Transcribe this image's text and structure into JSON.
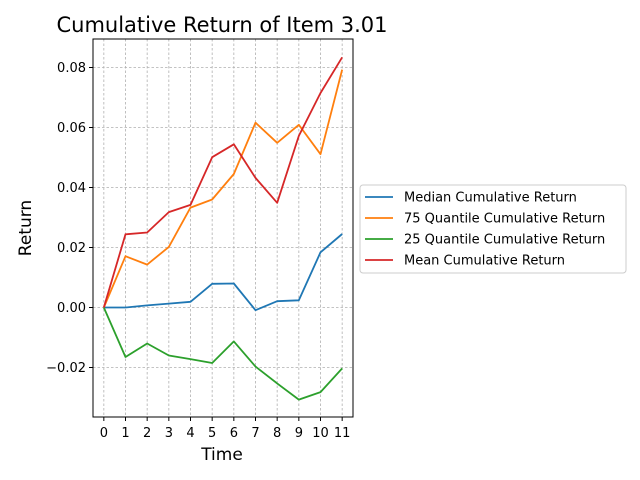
{
  "chart_data": {
    "type": "line",
    "title": "Cumulative Return of Item 3.01",
    "xlabel": "Time",
    "ylabel": "Return",
    "x": [
      0,
      1,
      2,
      3,
      4,
      5,
      6,
      7,
      8,
      9,
      10,
      11
    ],
    "xlim": [
      -0.5,
      11.5
    ],
    "ylim": [
      -0.0365,
      0.0895
    ],
    "yticks": [
      -0.02,
      0.0,
      0.02,
      0.04,
      0.06,
      0.08
    ],
    "ytick_labels": [
      "−0.02",
      "0.00",
      "0.02",
      "0.04",
      "0.06",
      "0.08"
    ],
    "xtick_labels": [
      "0",
      "1",
      "2",
      "3",
      "4",
      "5",
      "6",
      "7",
      "8",
      "9",
      "10",
      "11"
    ],
    "grid": true,
    "legend_position": "outside-right",
    "series": [
      {
        "name": "Median Cumulative Return",
        "color": "#1f77b4",
        "values": [
          0.0,
          0.0,
          0.0007,
          0.0013,
          0.0019,
          0.0079,
          0.008,
          -0.0009,
          0.0021,
          0.0024,
          0.0184,
          0.0245
        ]
      },
      {
        "name": "75 Quantile Cumulative Return",
        "color": "#ff7f0e",
        "values": [
          0.0,
          0.0171,
          0.0143,
          0.0202,
          0.0333,
          0.036,
          0.0445,
          0.0616,
          0.0549,
          0.0609,
          0.0511,
          0.0793
        ]
      },
      {
        "name": "25 Quantile Cumulative Return",
        "color": "#2ca02c",
        "values": [
          0.0,
          -0.0165,
          -0.012,
          -0.016,
          -0.0172,
          -0.0185,
          -0.0113,
          -0.0197,
          -0.0253,
          -0.0307,
          -0.0282,
          -0.0203
        ]
      },
      {
        "name": "Mean Cumulative Return",
        "color": "#d62728",
        "values": [
          0.0,
          0.0244,
          0.025,
          0.0318,
          0.0342,
          0.0501,
          0.0544,
          0.0432,
          0.0349,
          0.0572,
          0.0715,
          0.0834
        ]
      }
    ]
  }
}
